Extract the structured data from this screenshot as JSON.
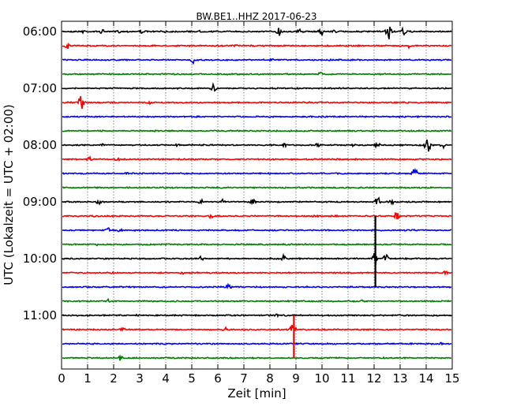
{
  "chart_data": {
    "type": "line",
    "title": "BW.BE1..HHZ 2017-06-23",
    "xlabel": "Zeit  [min]",
    "ylabel": "UTC (Lokalzeit = UTC + 02:00)",
    "xlim": [
      0,
      15
    ],
    "x_ticks": [
      "0",
      "1",
      "2",
      "3",
      "4",
      "5",
      "6",
      "7",
      "8",
      "9",
      "10",
      "11",
      "12",
      "13",
      "14",
      "15"
    ],
    "y_ticks": [
      "06:00",
      "07:00",
      "08:00",
      "09:00",
      "10:00",
      "11:00"
    ],
    "trace_interval_minutes": 15,
    "first_trace": "06:00",
    "grid": "vertical dotted at each minute",
    "colors": [
      "#000000",
      "#ff0000",
      "#0000ff",
      "#008000"
    ],
    "series": [
      {
        "start": "06:00",
        "color": "#000000",
        "events": [
          {
            "t": 0.8,
            "a": 0.3
          },
          {
            "t": 1.5,
            "a": 0.25
          },
          {
            "t": 2.1,
            "a": 0.25
          },
          {
            "t": 3,
            "a": 0.25
          },
          {
            "t": 4,
            "a": 0.2
          },
          {
            "t": 5.3,
            "a": 0.25
          },
          {
            "t": 8.3,
            "a": 0.6
          },
          {
            "t": 9.1,
            "a": 0.35
          },
          {
            "t": 9.9,
            "a": 0.55
          },
          {
            "t": 10.4,
            "a": 0.3
          },
          {
            "t": 12.5,
            "a": 1.2
          },
          {
            "t": 13.1,
            "a": 0.5
          }
        ]
      },
      {
        "start": "06:15",
        "color": "#ff0000",
        "events": [
          {
            "t": 0.15,
            "a": 0.55
          },
          {
            "t": 6.6,
            "a": 0.2
          },
          {
            "t": 13.3,
            "a": 0.25
          }
        ]
      },
      {
        "start": "06:30",
        "color": "#0000ff",
        "events": [
          {
            "t": 5.0,
            "a": 0.5
          },
          {
            "t": 8.0,
            "a": 0.2
          }
        ]
      },
      {
        "start": "06:45",
        "color": "#008000",
        "events": [
          {
            "t": 6.3,
            "a": 0.2
          },
          {
            "t": 9.9,
            "a": 0.3
          }
        ]
      },
      {
        "start": "07:00",
        "color": "#000000",
        "events": [
          {
            "t": 5.8,
            "a": 0.6
          }
        ]
      },
      {
        "start": "07:15",
        "color": "#ff0000",
        "events": [
          {
            "t": 0.7,
            "a": 1.0
          },
          {
            "t": 3.3,
            "a": 0.25
          },
          {
            "t": 13.2,
            "a": 0.25
          }
        ]
      },
      {
        "start": "07:30",
        "color": "#0000ff",
        "events": []
      },
      {
        "start": "07:45",
        "color": "#008000",
        "events": []
      },
      {
        "start": "08:00",
        "color": "#000000",
        "events": [
          {
            "t": 1.5,
            "a": 0.25
          },
          {
            "t": 4.4,
            "a": 0.2
          },
          {
            "t": 8.5,
            "a": 0.3
          },
          {
            "t": 9.8,
            "a": 0.25
          },
          {
            "t": 11.2,
            "a": 0.35
          },
          {
            "t": 12.0,
            "a": 0.25
          },
          {
            "t": 12.1,
            "a": 0.25
          },
          {
            "t": 14.0,
            "a": 1.3
          },
          {
            "t": 14.6,
            "a": 0.35
          }
        ]
      },
      {
        "start": "08:15",
        "color": "#ff0000",
        "events": [
          {
            "t": 1.0,
            "a": 0.35
          },
          {
            "t": 2.1,
            "a": 0.25
          }
        ]
      },
      {
        "start": "08:30",
        "color": "#0000ff",
        "events": [
          {
            "t": 2.4,
            "a": 0.25
          },
          {
            "t": 13.5,
            "a": 0.6
          }
        ]
      },
      {
        "start": "08:45",
        "color": "#008000",
        "events": []
      },
      {
        "start": "09:00",
        "color": "#000000",
        "events": [
          {
            "t": 1.4,
            "a": 0.4
          },
          {
            "t": 5.3,
            "a": 0.4
          },
          {
            "t": 6.1,
            "a": 0.35
          },
          {
            "t": 7.3,
            "a": 0.45
          },
          {
            "t": 12.1,
            "a": 0.8
          },
          {
            "t": 12.6,
            "a": 0.4
          }
        ]
      },
      {
        "start": "09:15",
        "color": "#ff0000",
        "events": [
          {
            "t": 1.2,
            "a": 0.25
          },
          {
            "t": 5.7,
            "a": 0.4
          },
          {
            "t": 9.7,
            "a": 0.3
          },
          {
            "t": 12.8,
            "a": 0.7
          }
        ]
      },
      {
        "start": "09:30",
        "color": "#0000ff",
        "events": [
          {
            "t": 1.7,
            "a": 0.4
          },
          {
            "t": 2.2,
            "a": 0.3
          }
        ]
      },
      {
        "start": "09:45",
        "color": "#008000",
        "events": [
          {
            "t": 1.3,
            "a": 0.2
          }
        ]
      },
      {
        "start": "10:00",
        "color": "#000000",
        "events": [
          {
            "t": 5.3,
            "a": 0.25
          },
          {
            "t": 8.5,
            "a": 0.5
          },
          {
            "t": 12.0,
            "a": 1.0
          },
          {
            "t": 12.4,
            "a": 0.5
          }
        ]
      },
      {
        "start": "10:15",
        "color": "#ff0000",
        "events": [
          {
            "t": 4.6,
            "a": 0.25
          },
          {
            "t": 14.7,
            "a": 0.25
          }
        ]
      },
      {
        "start": "10:30",
        "color": "#0000ff",
        "events": [
          {
            "t": 6.4,
            "a": 0.6
          }
        ]
      },
      {
        "start": "10:45",
        "color": "#008000",
        "events": [
          {
            "t": 1.7,
            "a": 0.35
          },
          {
            "t": 11.5,
            "a": 0.2
          }
        ]
      },
      {
        "start": "11:00",
        "color": "#000000",
        "events": [
          {
            "t": 2.9,
            "a": 0.2
          },
          {
            "t": 8.2,
            "a": 0.2
          }
        ]
      },
      {
        "start": "11:15",
        "color": "#ff0000",
        "events": [
          {
            "t": 2.3,
            "a": 0.3
          },
          {
            "t": 6.2,
            "a": 0.3
          },
          {
            "t": 8.8,
            "a": 1.3
          }
        ]
      },
      {
        "start": "11:30",
        "color": "#0000ff",
        "events": [
          {
            "t": 14.5,
            "a": 0.2
          }
        ]
      },
      {
        "start": "11:45",
        "color": "#008000",
        "events": [
          {
            "t": 2.2,
            "a": 0.3
          }
        ]
      }
    ],
    "spikes": [
      {
        "start": "09:00",
        "t": 12.05,
        "color": "#000000",
        "from_trace": "09:15",
        "to_trace": "10:30"
      },
      {
        "start": "11:15",
        "t": 8.92,
        "color": "#ff0000",
        "from_trace": "11:00",
        "to_trace": "11:45"
      }
    ]
  }
}
